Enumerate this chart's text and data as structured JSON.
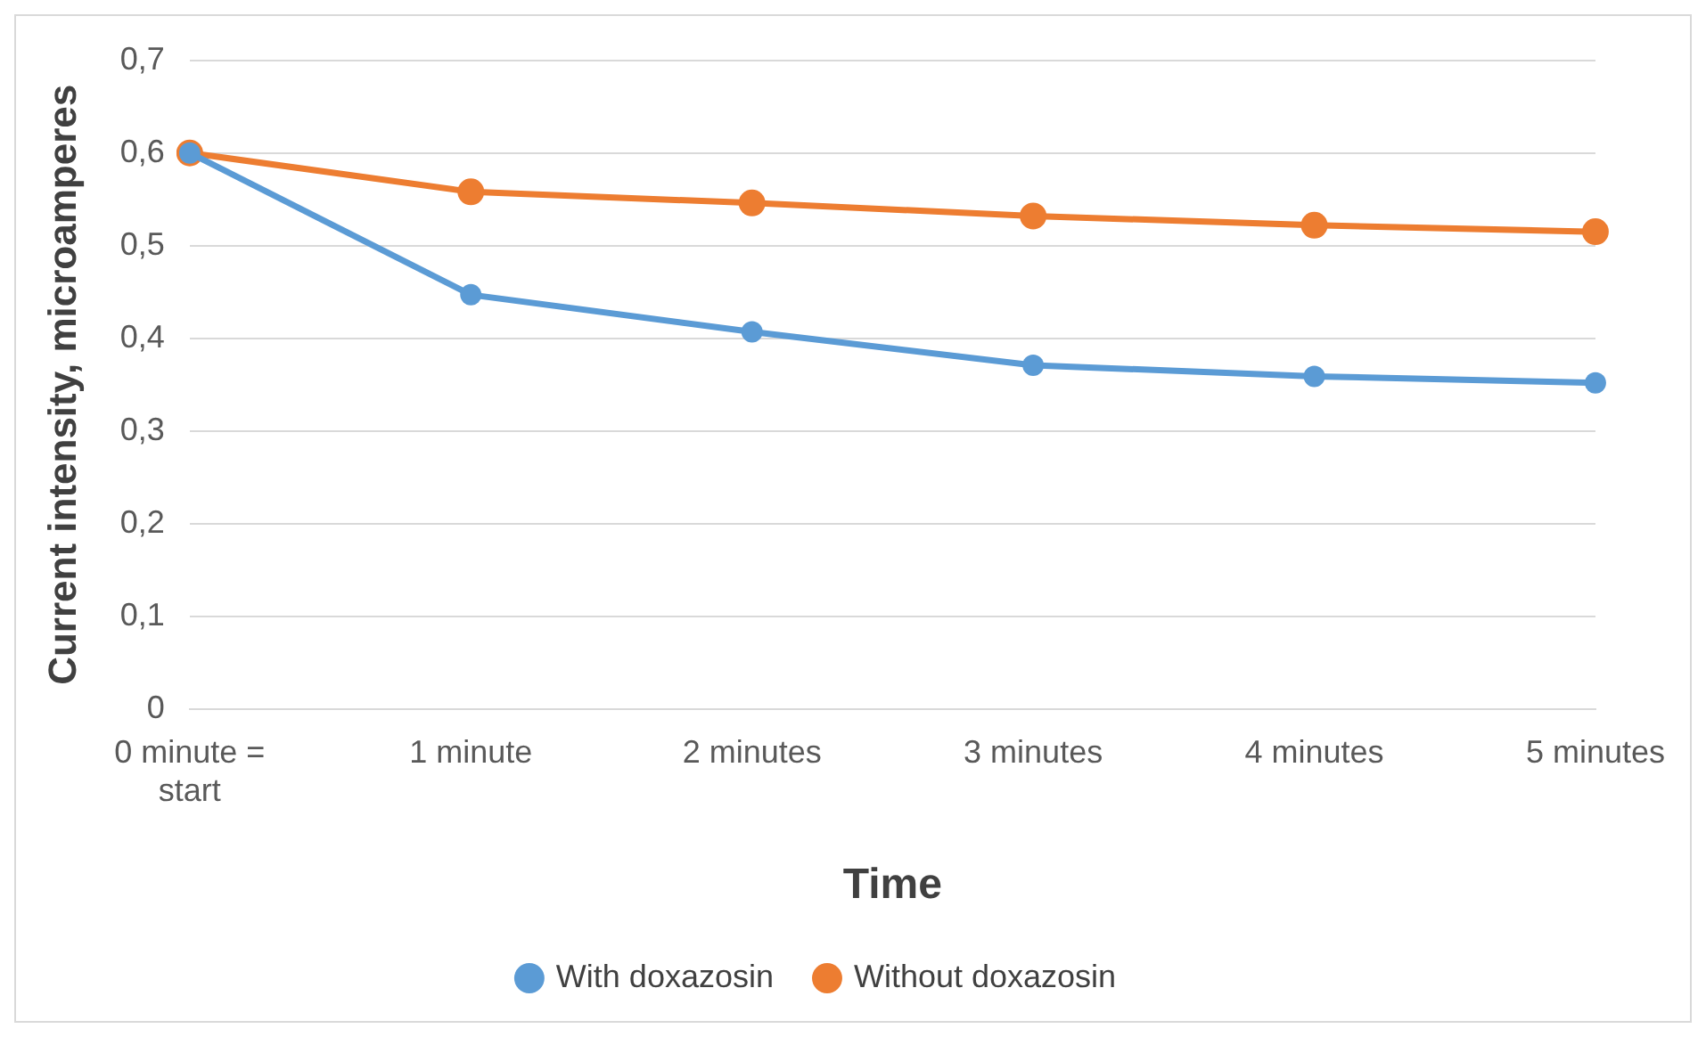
{
  "chart_data": {
    "type": "line",
    "xlabel": "Time",
    "ylabel": "Current intensity, microamperes",
    "categories": [
      "0 minute = start",
      "1 minute",
      "2 minutes",
      "3 minutes",
      "4 minutes",
      "5 minutes"
    ],
    "series": [
      {
        "name": "With doxazosin",
        "color": "#5b9bd5",
        "values": [
          0.6,
          0.447,
          0.407,
          0.371,
          0.359,
          0.352
        ]
      },
      {
        "name": "Without doxazosin",
        "color": "#ed7d31",
        "values": [
          0.6,
          0.558,
          0.546,
          0.532,
          0.522,
          0.515
        ]
      }
    ],
    "ylim": [
      0,
      0.7
    ],
    "yticks": [
      {
        "value": 0,
        "label": "0"
      },
      {
        "value": 0.1,
        "label": "0,1"
      },
      {
        "value": 0.2,
        "label": "0,2"
      },
      {
        "value": 0.3,
        "label": "0,3"
      },
      {
        "value": 0.4,
        "label": "0,4"
      },
      {
        "value": 0.5,
        "label": "0,5"
      },
      {
        "value": 0.6,
        "label": "0,6"
      },
      {
        "value": 0.7,
        "label": "0,7"
      }
    ],
    "grid": "y",
    "legend": "bottom",
    "marker": "circle",
    "line_style": "solid"
  }
}
